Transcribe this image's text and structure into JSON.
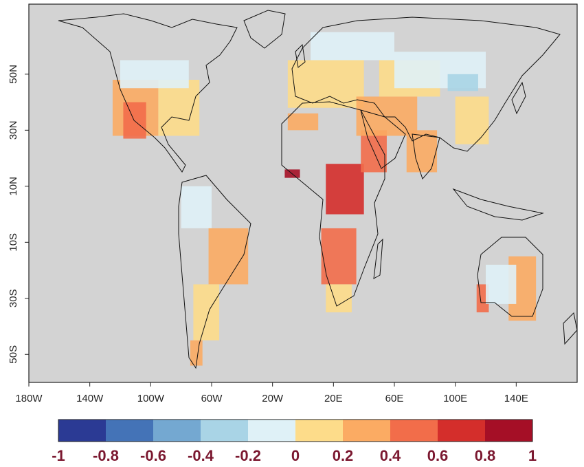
{
  "map": {
    "projection": "equirectangular",
    "lon_range": [
      -180,
      180
    ],
    "lat_range": [
      -60,
      75
    ],
    "background_color": "#d3d3d3",
    "coastline_color": "#111111",
    "y_ticks": [
      {
        "lat": 50,
        "label": "50N"
      },
      {
        "lat": 30,
        "label": "30N"
      },
      {
        "lat": 10,
        "label": "10N"
      },
      {
        "lat": -10,
        "label": "10S"
      },
      {
        "lat": -30,
        "label": "30S"
      },
      {
        "lat": -50,
        "label": "50S"
      }
    ],
    "x_ticks": [
      {
        "lon": -180,
        "label": "180W"
      },
      {
        "lon": -140,
        "label": "140W"
      },
      {
        "lon": -100,
        "label": "100W"
      },
      {
        "lon": -60,
        "label": "60W"
      },
      {
        "lon": -20,
        "label": "20W"
      },
      {
        "lon": 20,
        "label": "20E"
      },
      {
        "lon": 60,
        "label": "60E"
      },
      {
        "lon": 100,
        "label": "100E"
      },
      {
        "lon": 140,
        "label": "140E"
      }
    ]
  },
  "colorbar": {
    "range": [
      -1,
      1
    ],
    "colors": [
      "#2b3a94",
      "#4473b7",
      "#74a8d1",
      "#a9d4e6",
      "#dff1f7",
      "#fddc8a",
      "#fbab63",
      "#f26d4a",
      "#d42e2b",
      "#a50f26"
    ],
    "labels": [
      "-1",
      "-0.8",
      "-0.6",
      "-0.4",
      "-0.2",
      "0",
      "0.2",
      "0.4",
      "0.6",
      "0.8",
      "1"
    ],
    "label_color": "#7b1830"
  },
  "regions": [
    {
      "name": "western-usa",
      "lon": [
        -125,
        -95
      ],
      "lat": [
        28,
        48
      ],
      "value": 0.2
    },
    {
      "name": "sw-usa-core",
      "lon": [
        -118,
        -103
      ],
      "lat": [
        27,
        40
      ],
      "value": 0.4
    },
    {
      "name": "eastern-usa",
      "lon": [
        -95,
        -68
      ],
      "lat": [
        28,
        48
      ],
      "value": 0.15
    },
    {
      "name": "canada-south",
      "lon": [
        -120,
        -75
      ],
      "lat": [
        45,
        55
      ],
      "value": -0.1
    },
    {
      "name": "north-south-america",
      "lon": [
        -80,
        -60
      ],
      "lat": [
        -5,
        10
      ],
      "value": -0.1
    },
    {
      "name": "brazil-east",
      "lon": [
        -62,
        -36
      ],
      "lat": [
        -25,
        -5
      ],
      "value": 0.2
    },
    {
      "name": "argentina",
      "lon": [
        -72,
        -55
      ],
      "lat": [
        -45,
        -25
      ],
      "value": 0.15
    },
    {
      "name": "patagonia",
      "lon": [
        -74,
        -66
      ],
      "lat": [
        -54,
        -45
      ],
      "value": 0.25
    },
    {
      "name": "north-africa",
      "lon": [
        -10,
        10
      ],
      "lat": [
        30,
        36
      ],
      "value": 0.2
    },
    {
      "name": "sahel-west",
      "lon": [
        -12,
        -2
      ],
      "lat": [
        13,
        16
      ],
      "value": 0.8
    },
    {
      "name": "east-africa",
      "lon": [
        15,
        40
      ],
      "lat": [
        0,
        18
      ],
      "value": 0.6
    },
    {
      "name": "arabia",
      "lon": [
        38,
        55
      ],
      "lat": [
        15,
        30
      ],
      "value": 0.5
    },
    {
      "name": "southern-africa",
      "lon": [
        12,
        35
      ],
      "lat": [
        -25,
        -5
      ],
      "value": 0.5
    },
    {
      "name": "south-africa",
      "lon": [
        15,
        32
      ],
      "lat": [
        -35,
        -25
      ],
      "value": 0.15
    },
    {
      "name": "europe",
      "lon": [
        -10,
        40
      ],
      "lat": [
        38,
        55
      ],
      "value": 0.15
    },
    {
      "name": "scandinavia-russia",
      "lon": [
        5,
        60
      ],
      "lat": [
        55,
        65
      ],
      "value": -0.1
    },
    {
      "name": "middle-east",
      "lon": [
        35,
        75
      ],
      "lat": [
        28,
        42
      ],
      "value": 0.35
    },
    {
      "name": "central-asia",
      "lon": [
        50,
        90
      ],
      "lat": [
        42,
        55
      ],
      "value": 0.15
    },
    {
      "name": "siberia-south",
      "lon": [
        60,
        120
      ],
      "lat": [
        45,
        58
      ],
      "value": -0.15
    },
    {
      "name": "mongolia",
      "lon": [
        95,
        115
      ],
      "lat": [
        44,
        50
      ],
      "value": -0.4
    },
    {
      "name": "india",
      "lon": [
        68,
        88
      ],
      "lat": [
        15,
        30
      ],
      "value": 0.2
    },
    {
      "name": "china-east",
      "lon": [
        100,
        122
      ],
      "lat": [
        25,
        42
      ],
      "value": 0.15
    },
    {
      "name": "australia-sw",
      "lon": [
        114,
        122
      ],
      "lat": [
        -35,
        -25
      ],
      "value": 0.5
    },
    {
      "name": "australia-east",
      "lon": [
        135,
        153
      ],
      "lat": [
        -38,
        -15
      ],
      "value": 0.2
    },
    {
      "name": "australia-interior",
      "lon": [
        120,
        140
      ],
      "lat": [
        -32,
        -18
      ],
      "value": -0.1
    }
  ]
}
